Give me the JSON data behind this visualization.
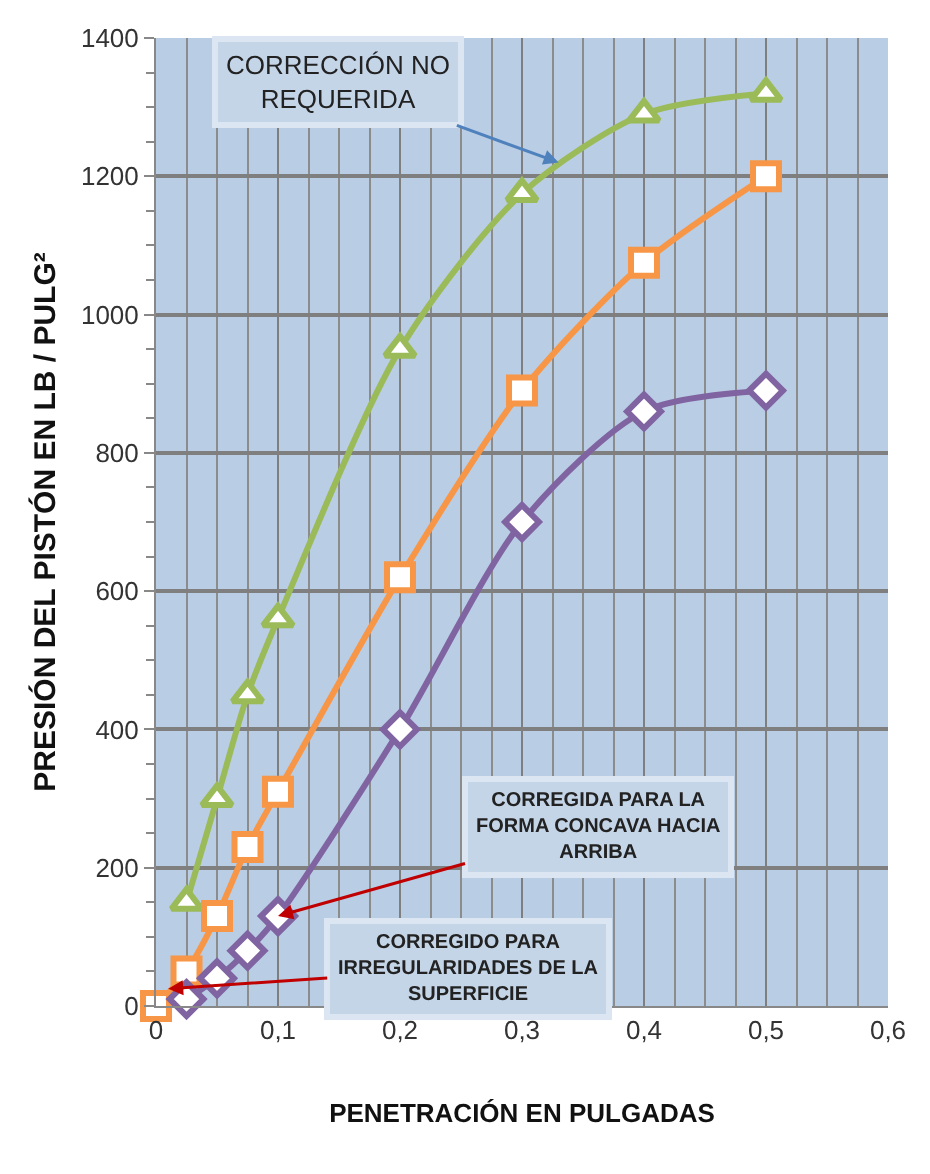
{
  "chart_data": {
    "type": "line",
    "xlabel": "PENETRACIÓN EN PULGADAS",
    "ylabel": "PRESIÓN DEL PISTÓN EN LB / PULG²",
    "x": [
      0,
      0.025,
      0.05,
      0.075,
      0.1,
      0.2,
      0.3,
      0.4,
      0.5
    ],
    "series": [
      {
        "color": "#9bbb59",
        "marker": "triangle",
        "x": [
          0.025,
          0.05,
          0.075,
          0.1,
          0.2,
          0.3,
          0.4,
          0.5
        ],
        "values": [
          150,
          300,
          450,
          560,
          950,
          1175,
          1290,
          1320
        ]
      },
      {
        "color": "#f79646",
        "marker": "square",
        "values": [
          0,
          50,
          130,
          230,
          310,
          620,
          890,
          1075,
          1200
        ]
      },
      {
        "color": "#8064a2",
        "marker": "diamond",
        "x": [
          0.025,
          0.05,
          0.075,
          0.1,
          0.2,
          0.3,
          0.4,
          0.5
        ],
        "values": [
          10,
          40,
          80,
          130,
          400,
          700,
          860,
          890
        ]
      }
    ],
    "xlim": [
      0,
      0.6
    ],
    "xticks": [
      0,
      {
        "value": 0.1,
        "label": "0,1"
      },
      {
        "value": 0.2,
        "label": "0,2"
      },
      {
        "value": 0.3,
        "label": "0,3"
      },
      {
        "value": 0.4,
        "label": "0,4"
      },
      {
        "value": 0.5,
        "label": "0,5"
      },
      {
        "value": 0.6,
        "label": "0,6"
      }
    ],
    "ylim": [
      0,
      1400
    ],
    "yticks": [
      0,
      200,
      400,
      600,
      800,
      1000,
      1200,
      1400
    ],
    "grid": true,
    "annotations": [
      {
        "text": "CORRECCIÓN NO\nREQUERIDA",
        "x": 0.33,
        "y": 1220
      },
      {
        "text": "CORREGIDA PARA LA\nFORMA CONCAVA HACIA\nARRIBA",
        "x": 0.1,
        "y": 130
      },
      {
        "text": "CORREGIDO PARA\nIRREGULARIDADES DE LA\nSUPERFICIE",
        "x": 0.01,
        "y": 25
      }
    ]
  }
}
